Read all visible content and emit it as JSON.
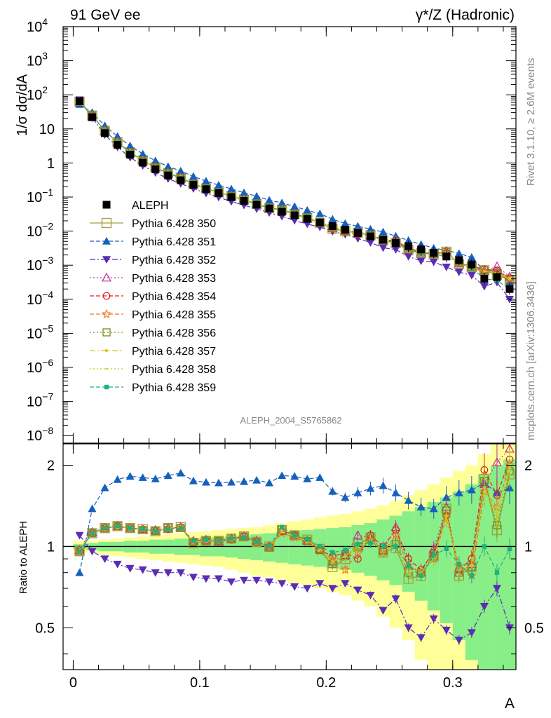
{
  "header": {
    "left": "91 GeV ee",
    "right": "γ*/Z (Hadronic)"
  },
  "side_labels": {
    "rivet": "Rivet 3.1.10, ≥ 2.6M events",
    "mcplots": "mcplots.cern.ch [arXiv:1306.3436]"
  },
  "analysis_label": "ALEPH_2004_S5765862",
  "chart_data": {
    "type": "scatter",
    "xlabel": "A",
    "ylabel_top": "1/σ  dσ/dA",
    "ylabel_ratio": "Ratio to ALEPH",
    "xlim": [
      -0.008,
      0.35
    ],
    "ylim_top": [
      6e-09,
      10000
    ],
    "ylim_ratio": [
      0.35,
      2.4
    ],
    "log_y_top": true,
    "log_y_ratio": true,
    "x_ticks": [
      "0",
      "0.1",
      "0.2",
      "0.3"
    ],
    "x_tick_values": [
      0,
      0.1,
      0.2,
      0.3
    ],
    "y_ticks_top": [
      {
        "value": 10000,
        "base": "10",
        "exp": "4"
      },
      {
        "value": 1000,
        "base": "10",
        "exp": "3"
      },
      {
        "value": 100,
        "base": "10",
        "exp": "2"
      },
      {
        "value": 10,
        "base": "10",
        "exp": ""
      },
      {
        "value": 1,
        "base": "1",
        "exp": ""
      },
      {
        "value": 0.1,
        "base": "10",
        "exp": "−1"
      },
      {
        "value": 0.01,
        "base": "10",
        "exp": "−2"
      },
      {
        "value": 0.001,
        "base": "10",
        "exp": "−3"
      },
      {
        "value": 0.0001,
        "base": "10",
        "exp": "−4"
      },
      {
        "value": 1e-05,
        "base": "10",
        "exp": "−5"
      },
      {
        "value": 1e-06,
        "base": "10",
        "exp": "−6"
      },
      {
        "value": 1e-07,
        "base": "10",
        "exp": "−7"
      },
      {
        "value": 1e-08,
        "base": "10",
        "exp": "−8"
      }
    ],
    "y_ticks_ratio": [
      {
        "value": 0.5,
        "label": "0.5"
      },
      {
        "value": 1,
        "label": "1"
      },
      {
        "value": 2,
        "label": "2"
      }
    ],
    "legend_position": "left-middle",
    "x": [
      0.005,
      0.015,
      0.025,
      0.035,
      0.045,
      0.055,
      0.065,
      0.075,
      0.085,
      0.095,
      0.105,
      0.115,
      0.125,
      0.135,
      0.145,
      0.155,
      0.165,
      0.175,
      0.185,
      0.195,
      0.205,
      0.215,
      0.225,
      0.235,
      0.245,
      0.255,
      0.265,
      0.275,
      0.285,
      0.295,
      0.305,
      0.315,
      0.325,
      0.335,
      0.345
    ],
    "data": {
      "name": "ALEPH",
      "y": [
        65,
        22,
        7.5,
        3.4,
        1.75,
        1.02,
        0.65,
        0.43,
        0.31,
        0.23,
        0.17,
        0.13,
        0.1,
        0.077,
        0.06,
        0.047,
        0.037,
        0.029,
        0.023,
        0.018,
        0.014,
        0.011,
        0.0088,
        0.007,
        0.0056,
        0.0045,
        0.0036,
        0.0029,
        0.0023,
        0.0018,
        0.0014,
        0.00105,
        0.0004,
        0.00045,
        0.0002
      ],
      "ratio_band_outer": [
        [
          0.95,
          1.05
        ],
        [
          0.95,
          1.05
        ],
        [
          0.93,
          1.06
        ],
        [
          0.92,
          1.07
        ],
        [
          0.91,
          1.08
        ],
        [
          0.9,
          1.09
        ],
        [
          0.89,
          1.1
        ],
        [
          0.88,
          1.11
        ],
        [
          0.87,
          1.12
        ],
        [
          0.86,
          1.13
        ],
        [
          0.85,
          1.14
        ],
        [
          0.84,
          1.15
        ],
        [
          0.82,
          1.16
        ],
        [
          0.8,
          1.17
        ],
        [
          0.78,
          1.18
        ],
        [
          0.77,
          1.2
        ],
        [
          0.75,
          1.22
        ],
        [
          0.73,
          1.24
        ],
        [
          0.72,
          1.26
        ],
        [
          0.7,
          1.28
        ],
        [
          0.68,
          1.3
        ],
        [
          0.66,
          1.32
        ],
        [
          0.63,
          1.35
        ],
        [
          0.6,
          1.38
        ],
        [
          0.55,
          1.42
        ],
        [
          0.5,
          1.48
        ],
        [
          0.45,
          1.55
        ],
        [
          0.38,
          1.62
        ],
        [
          0.3,
          1.7
        ],
        [
          0.3,
          1.8
        ],
        [
          0.3,
          1.9
        ],
        [
          0.3,
          2.0
        ],
        [
          0.3,
          2.2
        ],
        [
          0.3,
          2.4
        ],
        [
          0.3,
          2.4
        ]
      ],
      "ratio_band_inner": [
        [
          0.98,
          1.02
        ],
        [
          0.97,
          1.03
        ],
        [
          0.96,
          1.04
        ],
        [
          0.96,
          1.04
        ],
        [
          0.95,
          1.05
        ],
        [
          0.95,
          1.05
        ],
        [
          0.94,
          1.06
        ],
        [
          0.94,
          1.06
        ],
        [
          0.93,
          1.07
        ],
        [
          0.93,
          1.07
        ],
        [
          0.92,
          1.08
        ],
        [
          0.92,
          1.08
        ],
        [
          0.91,
          1.09
        ],
        [
          0.9,
          1.1
        ],
        [
          0.89,
          1.11
        ],
        [
          0.88,
          1.12
        ],
        [
          0.87,
          1.13
        ],
        [
          0.86,
          1.14
        ],
        [
          0.85,
          1.15
        ],
        [
          0.84,
          1.16
        ],
        [
          0.83,
          1.17
        ],
        [
          0.82,
          1.18
        ],
        [
          0.8,
          1.2
        ],
        [
          0.78,
          1.22
        ],
        [
          0.75,
          1.26
        ],
        [
          0.72,
          1.3
        ],
        [
          0.68,
          1.35
        ],
        [
          0.63,
          1.4
        ],
        [
          0.58,
          1.46
        ],
        [
          0.52,
          1.52
        ],
        [
          0.45,
          1.6
        ],
        [
          0.38,
          1.7
        ],
        [
          0.3,
          1.85
        ],
        [
          0.3,
          2.0
        ],
        [
          0.3,
          2.1
        ]
      ]
    },
    "series": [
      {
        "name": "Pythia 6.428 350",
        "color": "#a0a040",
        "marker": "open-square-large",
        "dash": "solid",
        "ratio": [
          0.96,
          1.12,
          1.17,
          1.19,
          1.17,
          1.16,
          1.14,
          1.17,
          1.18,
          1.03,
          1.05,
          1.05,
          1.07,
          1.09,
          1.04,
          1.0,
          1.15,
          1.1,
          1.06,
          0.98,
          0.84,
          0.9,
          1.02,
          1.08,
          0.95,
          0.99,
          0.76,
          0.78,
          0.92,
          1.38,
          0.78,
          0.84,
          1.78,
          1.15,
          1.85
        ]
      },
      {
        "name": "Pythia 6.428 351",
        "color": "#1560bd",
        "marker": "filled-triangle-up",
        "dash": "dashed",
        "ratio": [
          0.8,
          1.38,
          1.65,
          1.77,
          1.82,
          1.8,
          1.78,
          1.83,
          1.87,
          1.75,
          1.73,
          1.72,
          1.73,
          1.74,
          1.76,
          1.72,
          1.83,
          1.82,
          1.78,
          1.8,
          1.6,
          1.52,
          1.58,
          1.64,
          1.68,
          1.58,
          1.48,
          1.4,
          1.38,
          1.52,
          1.58,
          1.62,
          1.72,
          1.58,
          1.65
        ]
      },
      {
        "name": "Pythia 6.428 352",
        "color": "#5b2cb5",
        "marker": "filled-triangle-down",
        "dash": "dashdot",
        "ratio": [
          1.1,
          0.96,
          0.9,
          0.86,
          0.83,
          0.82,
          0.8,
          0.8,
          0.8,
          0.77,
          0.76,
          0.76,
          0.74,
          0.75,
          0.75,
          0.74,
          0.73,
          0.71,
          0.7,
          0.73,
          0.7,
          0.73,
          0.69,
          0.66,
          0.58,
          0.64,
          0.5,
          0.46,
          0.54,
          0.49,
          0.45,
          0.48,
          0.6,
          0.7,
          0.5
        ]
      },
      {
        "name": "Pythia 6.428 353",
        "color": "#c0309a",
        "marker": "open-triangle-up",
        "dash": "dotted",
        "ratio": [
          0.97,
          1.13,
          1.17,
          1.19,
          1.17,
          1.16,
          1.15,
          1.17,
          1.18,
          1.05,
          1.06,
          1.04,
          1.07,
          1.09,
          1.05,
          1.0,
          1.14,
          1.1,
          1.05,
          0.98,
          0.88,
          0.93,
          1.1,
          1.08,
          0.97,
          1.18,
          0.85,
          0.8,
          0.98,
          1.4,
          0.8,
          0.86,
          1.7,
          2.05,
          2.3
        ]
      },
      {
        "name": "Pythia 6.428 354",
        "color": "#e0201a",
        "marker": "open-circle",
        "dash": "dashed",
        "ratio": [
          0.96,
          1.12,
          1.17,
          1.19,
          1.17,
          1.16,
          1.14,
          1.16,
          1.18,
          1.04,
          1.05,
          1.05,
          1.06,
          1.09,
          1.04,
          1.0,
          1.14,
          1.1,
          1.05,
          0.97,
          0.92,
          0.95,
          0.9,
          1.1,
          1.0,
          1.15,
          0.9,
          0.82,
          0.95,
          1.3,
          0.82,
          0.9,
          1.92,
          1.55,
          2.1
        ]
      },
      {
        "name": "Pythia 6.428 355",
        "color": "#f07820",
        "marker": "open-star",
        "dash": "dashed",
        "ratio": [
          0.96,
          1.12,
          1.17,
          1.18,
          1.17,
          1.16,
          1.14,
          1.16,
          1.17,
          1.04,
          1.04,
          1.04,
          1.06,
          1.08,
          1.04,
          0.99,
          1.12,
          1.08,
          1.04,
          0.96,
          0.9,
          0.82,
          0.95,
          1.06,
          0.95,
          1.1,
          0.85,
          0.8,
          0.9,
          1.28,
          0.85,
          0.78,
          1.6,
          1.4,
          2.0
        ]
      },
      {
        "name": "Pythia 6.428 356",
        "color": "#7a8a10",
        "marker": "open-square",
        "dash": "dotted",
        "ratio": [
          0.96,
          1.12,
          1.17,
          1.19,
          1.17,
          1.15,
          1.14,
          1.17,
          1.17,
          1.04,
          1.05,
          1.05,
          1.07,
          1.09,
          1.04,
          0.99,
          1.15,
          1.1,
          1.05,
          0.97,
          0.86,
          0.92,
          1.0,
          1.07,
          0.96,
          1.02,
          0.8,
          0.8,
          0.92,
          1.36,
          0.8,
          0.84,
          1.75,
          1.2,
          1.9
        ]
      },
      {
        "name": "Pythia 6.428 357",
        "color": "#e8c010",
        "marker": "small-dot",
        "dash": "dashdot",
        "ratio": [
          0.96,
          1.12,
          1.17,
          1.19,
          1.17,
          1.16,
          1.14,
          1.17,
          1.18,
          1.04,
          1.05,
          1.05,
          1.06,
          1.08,
          1.04,
          1.0,
          1.14,
          1.09,
          1.05,
          0.98,
          0.88,
          0.92,
          1.0,
          1.06,
          0.97,
          1.0,
          0.82,
          0.8,
          0.9,
          1.3,
          0.82,
          0.85,
          1.65,
          1.3,
          1.95
        ]
      },
      {
        "name": "Pythia 6.428 358",
        "color": "#c8c820",
        "marker": "tiny-dot",
        "dash": "dotted",
        "ratio": [
          0.96,
          1.12,
          1.17,
          1.19,
          1.17,
          1.16,
          1.14,
          1.17,
          1.18,
          1.04,
          1.05,
          1.05,
          1.06,
          1.08,
          1.04,
          1.0,
          1.14,
          1.09,
          1.05,
          0.98,
          0.88,
          0.92,
          1.0,
          1.06,
          0.97,
          1.0,
          0.82,
          0.8,
          0.9,
          1.3,
          0.82,
          0.85,
          1.65,
          1.3,
          1.95
        ]
      },
      {
        "name": "Pythia 6.428 359",
        "color": "#20b080",
        "marker": "filled-square",
        "dash": "dashed",
        "ratio": [
          0.96,
          1.12,
          1.17,
          1.19,
          1.17,
          1.16,
          1.14,
          1.16,
          1.17,
          1.05,
          1.06,
          1.05,
          1.07,
          1.08,
          1.04,
          1.0,
          1.18,
          1.1,
          1.06,
          1.0,
          0.95,
          0.97,
          1.02,
          1.03,
          1.0,
          1.0,
          0.85,
          0.78,
          0.93,
          0.98,
          0.86,
          0.78,
          1.0,
          0.8,
          0.98
        ]
      }
    ]
  }
}
